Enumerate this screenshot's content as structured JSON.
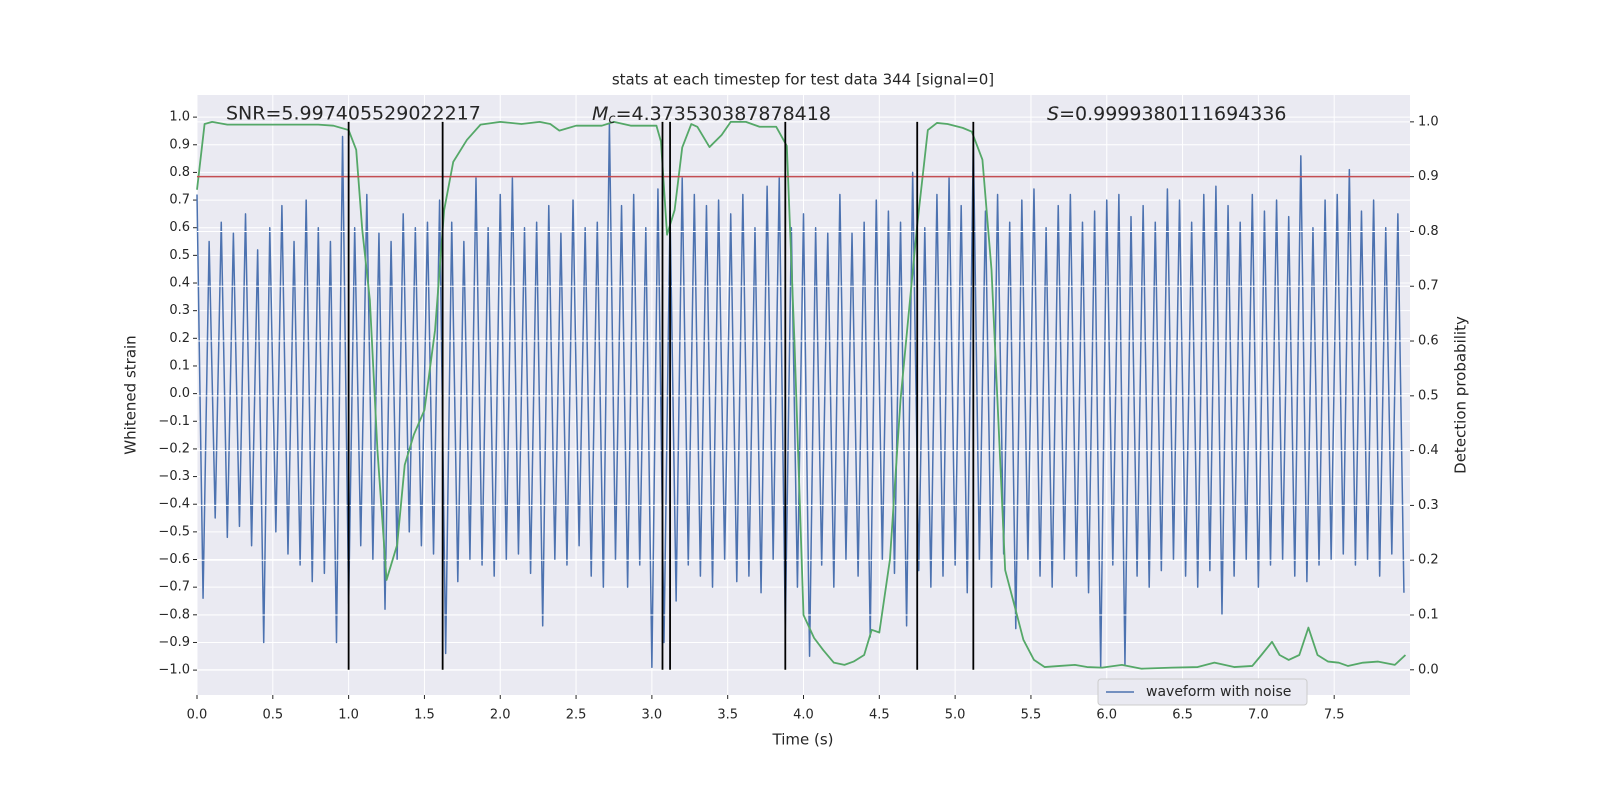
{
  "chart_data": {
    "type": "line",
    "title": "stats at each timestep for test data 344 [signal=0]",
    "xlabel": "Time (s)",
    "ylabel": "Whitened strain",
    "y2label": "Detection probability",
    "annotations": [
      {
        "label": "SNR=5.997405529022217"
      },
      {
        "symbol": "M",
        "subscript": "c",
        "label": "=4.373530387878418"
      },
      {
        "symbol": "S",
        "label": "=0.9999380111694336"
      }
    ],
    "xlim": [
      0,
      8.0
    ],
    "ylim": [
      -1.09,
      1.08
    ],
    "y2lim": [
      -0.046,
      1.049
    ],
    "xticks": [
      {
        "value": 0,
        "label": "0.0"
      },
      {
        "value": 0.5,
        "label": "0.5"
      },
      {
        "value": 1,
        "label": "1.0"
      },
      {
        "value": 1.5,
        "label": "1.5"
      },
      {
        "value": 2,
        "label": "2.0"
      },
      {
        "value": 2.5,
        "label": "2.5"
      },
      {
        "value": 3,
        "label": "3.0"
      },
      {
        "value": 3.5,
        "label": "3.5"
      },
      {
        "value": 4,
        "label": "4.0"
      },
      {
        "value": 4.5,
        "label": "4.5"
      },
      {
        "value": 5,
        "label": "5.0"
      },
      {
        "value": 5.5,
        "label": "5.5"
      },
      {
        "value": 6,
        "label": "6.0"
      },
      {
        "value": 6.5,
        "label": "6.5"
      },
      {
        "value": 7,
        "label": "7.0"
      },
      {
        "value": 7.5,
        "label": "7.5"
      }
    ],
    "yticks": [
      {
        "value": -1,
        "label": "−1.0"
      },
      {
        "value": -0.9,
        "label": "−0.9"
      },
      {
        "value": -0.8,
        "label": "−0.8"
      },
      {
        "value": -0.7,
        "label": "−0.7"
      },
      {
        "value": -0.6,
        "label": "−0.6"
      },
      {
        "value": -0.5,
        "label": "−0.5"
      },
      {
        "value": -0.4,
        "label": "−0.4"
      },
      {
        "value": -0.3,
        "label": "−0.3"
      },
      {
        "value": -0.2,
        "label": "−0.2"
      },
      {
        "value": -0.1,
        "label": "−0.1"
      },
      {
        "value": 0,
        "label": "0.0"
      },
      {
        "value": 0.1,
        "label": "0.1"
      },
      {
        "value": 0.2,
        "label": "0.2"
      },
      {
        "value": 0.3,
        "label": "0.3"
      },
      {
        "value": 0.4,
        "label": "0.4"
      },
      {
        "value": 0.5,
        "label": "0.5"
      },
      {
        "value": 0.6,
        "label": "0.6"
      },
      {
        "value": 0.7,
        "label": "0.7"
      },
      {
        "value": 0.8,
        "label": "0.8"
      },
      {
        "value": 0.9,
        "label": "0.9"
      },
      {
        "value": 1,
        "label": "1.0"
      }
    ],
    "y2ticks": [
      {
        "value": 0,
        "label": "0.0"
      },
      {
        "value": 0.1,
        "label": "0.1"
      },
      {
        "value": 0.2,
        "label": "0.2"
      },
      {
        "value": 0.3,
        "label": "0.3"
      },
      {
        "value": 0.4,
        "label": "0.4"
      },
      {
        "value": 0.5,
        "label": "0.5"
      },
      {
        "value": 0.6,
        "label": "0.6"
      },
      {
        "value": 0.7,
        "label": "0.7"
      },
      {
        "value": 0.8,
        "label": "0.8"
      },
      {
        "value": 0.9,
        "label": "0.9"
      },
      {
        "value": 1,
        "label": "1.0"
      }
    ],
    "grid": true,
    "legend": "lower right",
    "series": [
      {
        "name": "waveform with noise",
        "color": "#4c72b0",
        "axis": "y",
        "x": [
          0,
          0.04,
          0.08,
          0.12,
          0.16,
          0.2,
          0.24,
          0.28,
          0.32,
          0.36,
          0.4,
          0.44,
          0.48,
          0.52,
          0.56,
          0.6,
          0.64,
          0.68,
          0.72,
          0.76,
          0.8,
          0.84,
          0.88,
          0.92,
          0.96,
          1.0,
          1.04,
          1.08,
          1.12,
          1.16,
          1.2,
          1.24,
          1.28,
          1.32,
          1.36,
          1.4,
          1.44,
          1.48,
          1.52,
          1.56,
          1.6,
          1.64,
          1.68,
          1.72,
          1.76,
          1.8,
          1.84,
          1.88,
          1.92,
          1.96,
          2.0,
          2.04,
          2.08,
          2.12,
          2.16,
          2.2,
          2.24,
          2.28,
          2.32,
          2.36,
          2.4,
          2.44,
          2.48,
          2.52,
          2.56,
          2.6,
          2.64,
          2.68,
          2.72,
          2.76,
          2.8,
          2.84,
          2.88,
          2.92,
          2.96,
          3.0,
          3.04,
          3.08,
          3.12,
          3.16,
          3.2,
          3.24,
          3.28,
          3.32,
          3.36,
          3.4,
          3.44,
          3.48,
          3.52,
          3.56,
          3.6,
          3.64,
          3.68,
          3.72,
          3.76,
          3.8,
          3.84,
          3.88,
          3.92,
          3.96,
          4.0,
          4.04,
          4.08,
          4.12,
          4.16,
          4.2,
          4.24,
          4.28,
          4.32,
          4.36,
          4.4,
          4.44,
          4.48,
          4.52,
          4.56,
          4.6,
          4.64,
          4.68,
          4.72,
          4.76,
          4.8,
          4.84,
          4.88,
          4.92,
          4.96,
          5.0,
          5.04,
          5.08,
          5.12,
          5.16,
          5.2,
          5.24,
          5.28,
          5.32,
          5.36,
          5.4,
          5.44,
          5.48,
          5.52,
          5.56,
          5.6,
          5.64,
          5.68,
          5.72,
          5.76,
          5.8,
          5.84,
          5.88,
          5.92,
          5.96,
          6.0,
          6.04,
          6.08,
          6.12,
          6.16,
          6.2,
          6.24,
          6.28,
          6.32,
          6.36,
          6.4,
          6.44,
          6.48,
          6.52,
          6.56,
          6.6,
          6.64,
          6.68,
          6.72,
          6.76,
          6.8,
          6.84,
          6.88,
          6.92,
          6.96,
          7.0,
          7.04,
          7.08,
          7.12,
          7.16,
          7.2,
          7.24,
          7.28,
          7.32,
          7.36,
          7.4,
          7.44,
          7.48,
          7.52,
          7.56,
          7.6,
          7.64,
          7.68,
          7.72,
          7.76,
          7.8,
          7.84,
          7.88,
          7.92,
          7.96
        ],
        "values": [
          0.72,
          -0.74,
          0.55,
          -0.45,
          0.62,
          -0.52,
          0.58,
          -0.48,
          0.65,
          -0.55,
          0.52,
          -0.9,
          0.6,
          -0.5,
          0.68,
          -0.58,
          0.55,
          -0.62,
          0.7,
          -0.68,
          0.6,
          -0.65,
          0.55,
          -0.9,
          0.93,
          -0.76,
          0.6,
          -0.55,
          0.72,
          -0.6,
          0.58,
          -0.78,
          0.55,
          -0.6,
          0.65,
          -0.5,
          0.6,
          -0.55,
          0.62,
          -0.58,
          0.7,
          -0.94,
          0.62,
          -0.68,
          0.55,
          -0.6,
          0.78,
          -0.62,
          0.6,
          -0.66,
          0.72,
          -0.6,
          0.78,
          -0.58,
          0.6,
          -0.65,
          0.62,
          -0.84,
          0.68,
          -0.6,
          0.58,
          -0.62,
          0.7,
          -0.55,
          0.6,
          -0.66,
          0.62,
          -0.7,
          0.98,
          -0.6,
          0.68,
          -0.7,
          0.72,
          -0.62,
          0.6,
          -0.99,
          0.74,
          -0.9,
          0.66,
          -0.75,
          0.78,
          -0.62,
          0.72,
          -0.66,
          0.68,
          -0.7,
          0.7,
          -0.6,
          0.65,
          -0.68,
          0.72,
          -0.66,
          0.6,
          -0.72,
          0.75,
          -0.6,
          0.78,
          -0.85,
          0.6,
          -0.7,
          0.65,
          -0.95,
          0.6,
          -0.62,
          0.58,
          -0.7,
          0.72,
          -0.6,
          0.58,
          -0.66,
          0.62,
          -0.88,
          0.7,
          -0.6,
          0.66,
          -0.65,
          0.62,
          -0.84,
          0.8,
          -0.64,
          0.6,
          -0.7,
          0.72,
          -0.66,
          0.78,
          -0.62,
          0.68,
          -0.72,
          0.92,
          -0.6,
          0.66,
          -0.7,
          0.72,
          -0.58,
          0.62,
          -0.85,
          0.7,
          -0.6,
          0.74,
          -0.66,
          0.6,
          -0.7,
          0.68,
          -0.6,
          0.72,
          -0.66,
          0.62,
          -0.72,
          0.66,
          -0.99,
          0.7,
          -0.62,
          0.72,
          -0.98,
          0.64,
          -0.66,
          0.68,
          -0.7,
          0.62,
          -0.64,
          0.74,
          -0.6,
          0.7,
          -0.66,
          0.62,
          -0.7,
          0.72,
          -0.64,
          0.75,
          -0.8,
          0.68,
          -0.66,
          0.62,
          -0.6,
          0.72,
          -0.7,
          0.66,
          -0.62,
          0.7,
          -0.6,
          0.64,
          -0.66,
          0.86,
          -0.68,
          0.6,
          -0.62,
          0.7,
          -0.6,
          0.72,
          -0.58,
          0.81,
          -0.62,
          0.66,
          -0.6,
          0.7,
          -0.66,
          0.6,
          -0.58,
          0.65,
          -0.72
        ]
      },
      {
        "color": "#55a868",
        "axis": "y2",
        "x": [
          0,
          0.05,
          0.1,
          0.2,
          0.4,
          0.6,
          0.8,
          0.9,
          1.0,
          1.05,
          1.09,
          1.14,
          1.19,
          1.25,
          1.32,
          1.37,
          1.43,
          1.5,
          1.57,
          1.63,
          1.69,
          1.78,
          1.87,
          2.0,
          2.14,
          2.26,
          2.33,
          2.39,
          2.5,
          2.67,
          2.75,
          2.86,
          3.03,
          3.06,
          3.1,
          3.15,
          3.2,
          3.26,
          3.3,
          3.38,
          3.46,
          3.52,
          3.62,
          3.71,
          3.82,
          3.89,
          3.94,
          4.0,
          4.07,
          4.13,
          4.2,
          4.27,
          4.33,
          4.4,
          4.45,
          4.5,
          4.57,
          4.64,
          4.69,
          4.75,
          4.82,
          4.88,
          4.95,
          5.05,
          5.11,
          5.18,
          5.24,
          5.33,
          5.39,
          5.45,
          5.52,
          5.59,
          5.69,
          5.79,
          5.87,
          5.97,
          6.1,
          6.23,
          6.43,
          6.6,
          6.71,
          6.84,
          6.96,
          7.02,
          7.09,
          7.14,
          7.2,
          7.27,
          7.33,
          7.39,
          7.46,
          7.53,
          7.59,
          7.69,
          7.79,
          7.9,
          7.97
        ],
        "values": [
          0.876,
          0.996,
          1.0,
          0.995,
          0.995,
          0.995,
          0.995,
          0.993,
          0.985,
          0.949,
          0.803,
          0.675,
          0.401,
          0.164,
          0.228,
          0.374,
          0.429,
          0.474,
          0.62,
          0.839,
          0.927,
          0.967,
          0.995,
          1.0,
          0.996,
          1.0,
          0.996,
          0.984,
          0.993,
          0.993,
          1.0,
          0.993,
          0.993,
          0.964,
          0.794,
          0.839,
          0.953,
          0.996,
          0.991,
          0.954,
          0.976,
          1.0,
          1.0,
          0.991,
          0.991,
          0.956,
          0.602,
          0.1,
          0.058,
          0.036,
          0.013,
          0.009,
          0.015,
          0.027,
          0.073,
          0.068,
          0.201,
          0.493,
          0.639,
          0.812,
          0.985,
          0.998,
          0.996,
          0.989,
          0.982,
          0.931,
          0.73,
          0.182,
          0.119,
          0.055,
          0.018,
          0.005,
          0.007,
          0.009,
          0.005,
          0.004,
          0.009,
          0.002,
          0.004,
          0.005,
          0.013,
          0.005,
          0.007,
          0.027,
          0.051,
          0.027,
          0.018,
          0.027,
          0.077,
          0.027,
          0.015,
          0.013,
          0.007,
          0.013,
          0.015,
          0.009,
          0.027
        ]
      }
    ],
    "hline": {
      "value": 0.9,
      "axis": "y2",
      "color": "#c44e52"
    },
    "vlines": {
      "x": [
        1.0,
        1.62,
        3.07,
        3.12,
        3.88,
        4.75,
        5.12
      ],
      "y2range": [
        0,
        1
      ],
      "color": "#000000"
    }
  }
}
